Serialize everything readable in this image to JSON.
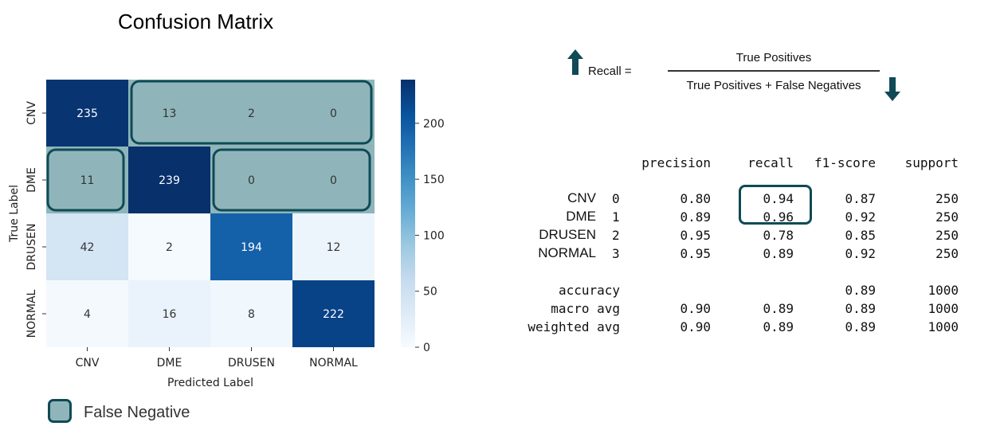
{
  "title": "Confusion Matrix",
  "chart_data": {
    "type": "heatmap",
    "title": "Confusion Matrix",
    "xlabel": "Predicted Label",
    "ylabel": "True Label",
    "x_categories": [
      "CNV",
      "DME",
      "DRUSEN",
      "NORMAL"
    ],
    "y_categories": [
      "CNV",
      "DME",
      "DRUSEN",
      "NORMAL"
    ],
    "values": [
      [
        235,
        13,
        2,
        0
      ],
      [
        11,
        239,
        0,
        0
      ],
      [
        42,
        2,
        194,
        12
      ],
      [
        4,
        16,
        8,
        222
      ]
    ],
    "colorbar": {
      "range": [
        0,
        239
      ],
      "ticks": [
        "0",
        "50",
        "100",
        "150",
        "200"
      ],
      "tick_values": [
        0,
        50,
        100,
        150,
        200
      ],
      "colormap": "Blues"
    },
    "false_negative_cells": [
      [
        0,
        1
      ],
      [
        0,
        2
      ],
      [
        0,
        3
      ],
      [
        1,
        0
      ],
      [
        1,
        2
      ],
      [
        1,
        3
      ]
    ]
  },
  "legend": {
    "label": "False Negative",
    "color": "#8fb5bb",
    "border_color": "#0f4a56"
  },
  "formula": {
    "lhs": "Recall =",
    "numerator": "True Positives",
    "denominator": "True Positives + False Negatives",
    "arrow_color": "#0f4a56"
  },
  "report": {
    "headers": [
      "precision",
      "recall",
      "f1-score",
      "support"
    ],
    "rows": [
      {
        "name": "CNV",
        "index": "0",
        "precision": "0.80",
        "recall": "0.94",
        "f1": "0.87",
        "support": "250"
      },
      {
        "name": "DME",
        "index": "1",
        "precision": "0.89",
        "recall": "0.96",
        "f1": "0.92",
        "support": "250"
      },
      {
        "name": "DRUSEN",
        "index": "2",
        "precision": "0.95",
        "recall": "0.78",
        "f1": "0.85",
        "support": "250"
      },
      {
        "name": "NORMAL",
        "index": "3",
        "precision": "0.95",
        "recall": "0.89",
        "f1": "0.92",
        "support": "250"
      }
    ],
    "summary": [
      {
        "name": "accuracy",
        "precision": "",
        "recall": "",
        "f1": "0.89",
        "support": "1000"
      },
      {
        "name": "macro avg",
        "precision": "0.90",
        "recall": "0.89",
        "f1": "0.89",
        "support": "1000"
      },
      {
        "name": "weighted avg",
        "precision": "0.90",
        "recall": "0.89",
        "f1": "0.89",
        "support": "1000"
      }
    ]
  }
}
